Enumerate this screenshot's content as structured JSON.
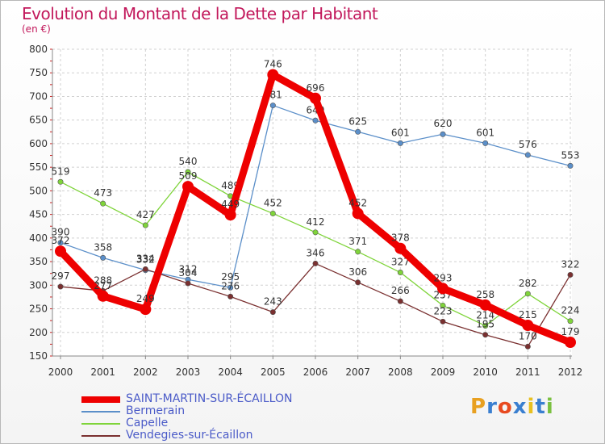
{
  "chart_data": {
    "type": "line",
    "title": "Evolution du Montant de la Dette par Habitant",
    "subtitle": "(en €)",
    "xlabel": "",
    "ylabel": "",
    "categories": [
      "2000",
      "2001",
      "2002",
      "2003",
      "2004",
      "2005",
      "2006",
      "2007",
      "2008",
      "2009",
      "2010",
      "2011",
      "2012"
    ],
    "ylim": [
      150,
      800
    ],
    "yticks": [
      150,
      200,
      250,
      300,
      350,
      400,
      450,
      500,
      550,
      600,
      650,
      700,
      750,
      800
    ],
    "grid": true,
    "legend_position": "bottom-left",
    "series": [
      {
        "name": "SAINT-MARTIN-SUR-ÉCAILLON",
        "color": "#ee0000",
        "values": [
          372,
          277,
          249,
          509,
          449,
          746,
          696,
          452,
          378,
          293,
          258,
          215,
          179
        ]
      },
      {
        "name": "Bermerain",
        "color": "#5b8fc9",
        "values": [
          390,
          358,
          332,
          312,
          295,
          681,
          649,
          625,
          601,
          620,
          601,
          576,
          553
        ]
      },
      {
        "name": "Capelle",
        "color": "#7fd43a",
        "values": [
          519,
          473,
          427,
          540,
          489,
          452,
          412,
          371,
          327,
          257,
          214,
          282,
          224
        ]
      },
      {
        "name": "Vendegies-sur-Écaillon",
        "color": "#7a3030",
        "values": [
          297,
          288,
          334,
          304,
          276,
          243,
          346,
          306,
          266,
          223,
          195,
          170,
          322
        ]
      }
    ]
  },
  "logo": {
    "letters": [
      "P",
      "r",
      "o",
      "x",
      "i",
      "t",
      "i"
    ],
    "colors": [
      "#e8a020",
      "#3a7fd0",
      "#e84a20",
      "#3a7fd0",
      "#e8c020",
      "#3a7fd0",
      "#7ac040"
    ]
  }
}
